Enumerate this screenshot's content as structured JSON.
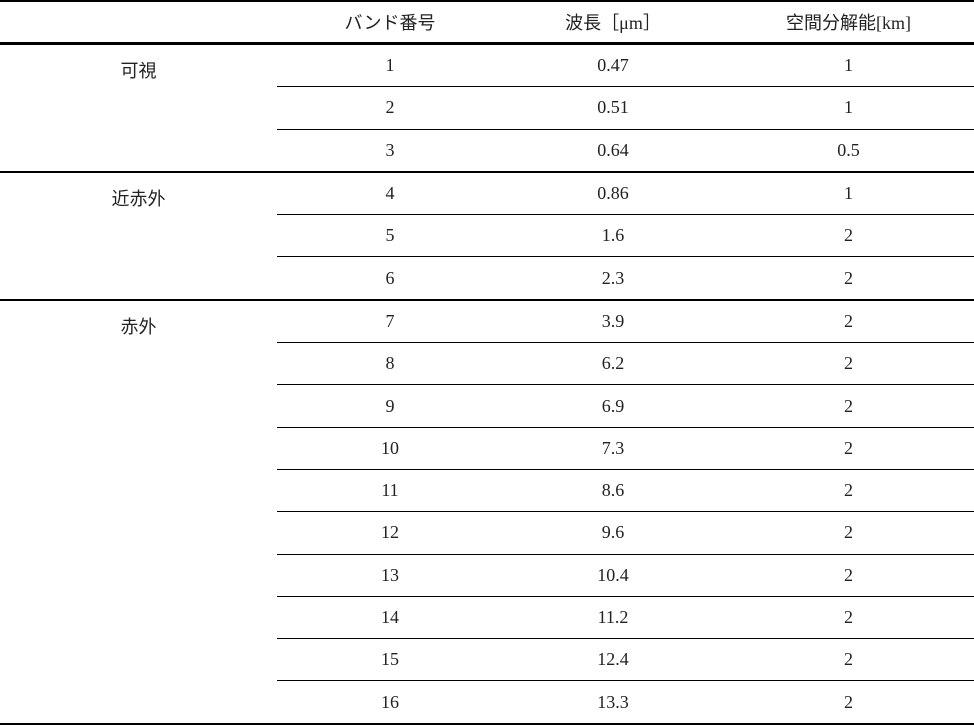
{
  "table": {
    "headers": [
      "",
      "バンド番号",
      "波長［μm］",
      "空間分解能[km]"
    ],
    "groups": [
      {
        "label": "可視",
        "rows": [
          [
            "1",
            "0.47",
            "1"
          ],
          [
            "2",
            "0.51",
            "1"
          ],
          [
            "3",
            "0.64",
            "0.5"
          ]
        ]
      },
      {
        "label": "近赤外",
        "rows": [
          [
            "4",
            "0.86",
            "1"
          ],
          [
            "5",
            "1.6",
            "2"
          ],
          [
            "6",
            "2.3",
            "2"
          ]
        ]
      },
      {
        "label": "赤外",
        "rows": [
          [
            "7",
            "3.9",
            "2"
          ],
          [
            "8",
            "6.2",
            "2"
          ],
          [
            "9",
            "6.9",
            "2"
          ],
          [
            "10",
            "7.3",
            "2"
          ],
          [
            "11",
            "8.6",
            "2"
          ],
          [
            "12",
            "9.6",
            "2"
          ],
          [
            "13",
            "10.4",
            "2"
          ],
          [
            "14",
            "11.2",
            "2"
          ],
          [
            "15",
            "12.4",
            "2"
          ],
          [
            "16",
            "13.3",
            "2"
          ]
        ]
      }
    ]
  }
}
